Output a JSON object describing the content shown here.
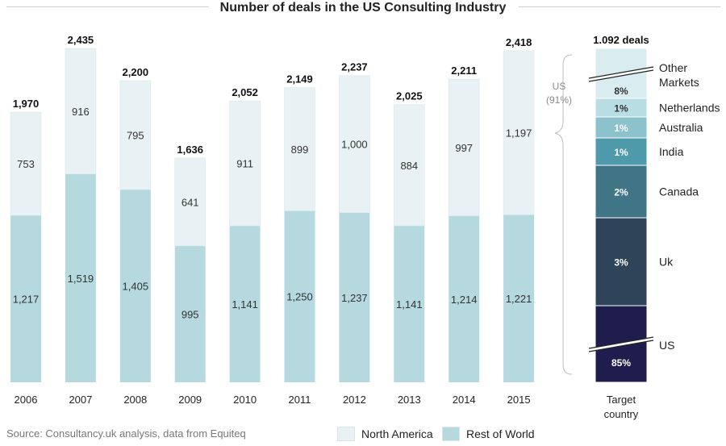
{
  "title": "Number of deals in the US Consulting Industry",
  "source": "Source: Consultancy.uk analysis, data from Equiteq",
  "colors": {
    "north_america": "#e8f1f3",
    "rest_of_world": "#b5d9df",
    "stack": [
      "#1f1d4d",
      "#2e4459",
      "#3f7585",
      "#4e9aab",
      "#8cc2cc",
      "#b8dde2",
      "#d9ecef"
    ]
  },
  "chart_data": [
    {
      "type": "bar",
      "stacked": true,
      "title": "Number of deals in the US Consulting Industry",
      "categories": [
        "2006",
        "2007",
        "2008",
        "2009",
        "2010",
        "2011",
        "2012",
        "2013",
        "2014",
        "2015"
      ],
      "series": [
        {
          "name": "Rest of World",
          "values": [
            1217,
            1519,
            1405,
            995,
            1141,
            1250,
            1237,
            1141,
            1214,
            1221
          ],
          "labels": [
            "1,217",
            "1,519",
            "1,405",
            "995",
            "1,141",
            "1,250",
            "1,237",
            "1,141",
            "1,214",
            "1,221"
          ]
        },
        {
          "name": "North America",
          "values": [
            753,
            916,
            795,
            641,
            911,
            899,
            1000,
            884,
            997,
            1197
          ],
          "labels": [
            "753",
            "916",
            "795",
            "641",
            "911",
            "899",
            "1,000",
            "884",
            "997",
            "1,197"
          ]
        }
      ],
      "totals": [
        1970,
        2435,
        2200,
        1636,
        2052,
        2149,
        2237,
        2025,
        2211,
        2418
      ],
      "total_labels": [
        "1,970",
        "2,435",
        "2,200",
        "1,636",
        "2,052",
        "2,149",
        "2,237",
        "2,025",
        "2,211",
        "2,418"
      ],
      "ylim": [
        0,
        2500
      ],
      "grid": false,
      "legend": "bottom"
    },
    {
      "type": "bar",
      "stacked": true,
      "header": "1.092 deals",
      "category": "Target\ncountry",
      "segments": [
        {
          "name": "US",
          "value": 85,
          "label": "85%"
        },
        {
          "name": "Uk",
          "value": 3,
          "label": "3%"
        },
        {
          "name": "Canada",
          "value": 2,
          "label": "2%"
        },
        {
          "name": "India",
          "value": 1,
          "label": "1%"
        },
        {
          "name": "Australia",
          "value": 1,
          "label": "1%"
        },
        {
          "name": "Netherlands",
          "value": 1,
          "label": "1%"
        },
        {
          "name": "Other\nMarkets",
          "value": 8,
          "label": "8%"
        }
      ],
      "bracket_label": "US\n(91%)",
      "axis_break": true
    }
  ],
  "legend": {
    "north_america": "North America",
    "rest_of_world": "Rest of World"
  }
}
